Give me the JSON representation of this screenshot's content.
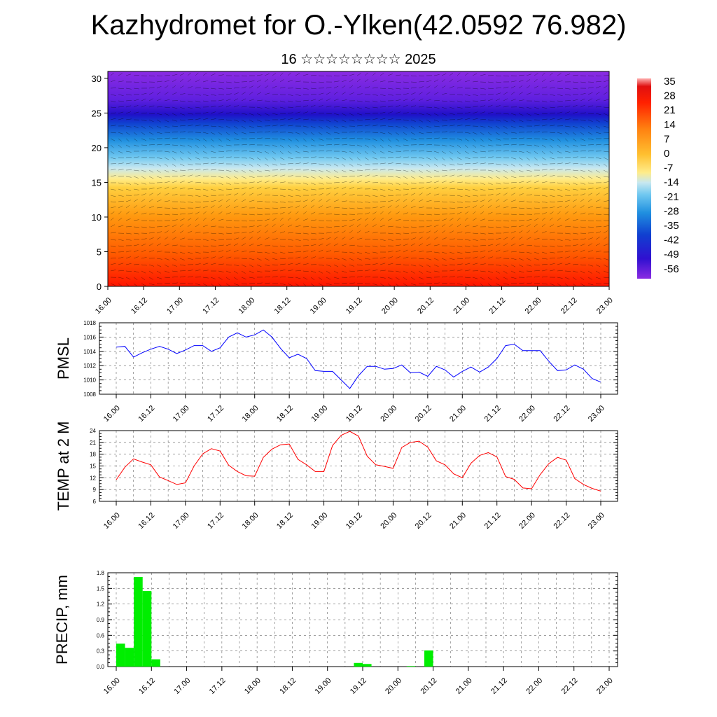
{
  "title": "Kazhydromet for O.-Ylken(42.0592 76.982)",
  "subtitle": "16 ☆☆☆☆☆☆☆☆ 2025",
  "time_labels": [
    "16.00",
    "16.12",
    "17.00",
    "17.12",
    "18.00",
    "18.12",
    "19.00",
    "19.12",
    "20.00",
    "20.12",
    "21.00",
    "21.12",
    "22.00",
    "22.12",
    "23.00"
  ],
  "chart_data": [
    {
      "type": "heatmap",
      "name": "",
      "yticks": [
        0,
        5,
        10,
        15,
        20,
        25,
        30
      ],
      "ylim": [
        0,
        31
      ],
      "colorbar_labels": [
        "35",
        "28",
        "21",
        "14",
        "7",
        "0",
        "-7",
        "-14",
        "-21",
        "-28",
        "-35",
        "-42",
        "-49",
        "-56"
      ],
      "colors": {
        "top": "#8a2be2",
        "mid": "#ffe680",
        "bottom": "#ff2200"
      }
    },
    {
      "type": "line",
      "ylabel": "PMSL",
      "ylim": [
        1008,
        1018
      ],
      "yticks": [
        "1008",
        "1010",
        "1012",
        "1014",
        "1016",
        "1018"
      ],
      "color": "#0000ff",
      "series": [
        {
          "values": [
            1014.6,
            1014.7,
            1013.2,
            1013.8,
            1014.3,
            1014.7,
            1014.3,
            1013.7,
            1014.2,
            1014.8,
            1014.8,
            1014.0,
            1014.5,
            1016.0,
            1016.6,
            1016.0,
            1016.3,
            1017.0,
            1016.0,
            1014.4,
            1013.1,
            1013.6,
            1013.0,
            1011.3,
            1011.2,
            1011.2,
            1010.0,
            1008.8,
            1010.6,
            1011.9,
            1011.9,
            1011.5,
            1011.6,
            1012.1,
            1011.0,
            1011.1,
            1010.5,
            1011.9,
            1011.4,
            1010.4,
            1011.2,
            1011.8,
            1011.1,
            1011.8,
            1013.0,
            1014.8,
            1015.0,
            1014.1,
            1014.1,
            1014.1,
            1012.6,
            1011.3,
            1011.4,
            1012.1,
            1011.5,
            1010.2,
            1009.7
          ]
        }
      ]
    },
    {
      "type": "line",
      "ylabel": "TEMP at 2 M",
      "ylim": [
        6,
        24
      ],
      "yticks": [
        "6",
        "9",
        "12",
        "15",
        "18",
        "21",
        "24"
      ],
      "color": "#ff0000",
      "series": [
        {
          "values": [
            11.5,
            14.7,
            16.8,
            16.0,
            15.3,
            12.2,
            11.3,
            10.3,
            10.7,
            15.0,
            18.1,
            19.4,
            18.8,
            15.2,
            13.6,
            12.5,
            12.4,
            17.2,
            19.3,
            20.4,
            20.6,
            16.7,
            15.3,
            13.6,
            13.6,
            20.2,
            22.8,
            23.8,
            22.6,
            17.5,
            15.3,
            14.9,
            14.4,
            19.7,
            21.0,
            21.3,
            19.8,
            16.3,
            15.3,
            13.0,
            12.0,
            15.7,
            17.7,
            18.4,
            17.3,
            12.3,
            11.6,
            9.4,
            9.2,
            12.8,
            15.6,
            17.2,
            16.5,
            11.8,
            10.3,
            9.3,
            8.6
          ]
        }
      ]
    },
    {
      "type": "bar",
      "ylabel": "PRECIP, mm",
      "ylim": [
        0,
        1.8
      ],
      "yticks": [
        "0.0",
        "0.3",
        "0.6",
        "0.9",
        "1.2",
        "1.5",
        "1.8"
      ],
      "color": "#00ee00",
      "values": [
        0.44,
        0.36,
        1.72,
        1.45,
        0.14,
        0,
        0,
        0,
        0,
        0,
        0,
        0,
        0,
        0,
        0,
        0,
        0,
        0,
        0,
        0,
        0,
        0,
        0,
        0,
        0,
        0,
        0,
        0.07,
        0.05,
        0,
        0,
        0,
        0,
        0.01,
        0,
        0.31,
        0,
        0,
        0,
        0,
        0,
        0,
        0,
        0,
        0,
        0,
        0,
        0,
        0,
        0,
        0,
        0,
        0,
        0,
        0,
        0
      ]
    }
  ]
}
